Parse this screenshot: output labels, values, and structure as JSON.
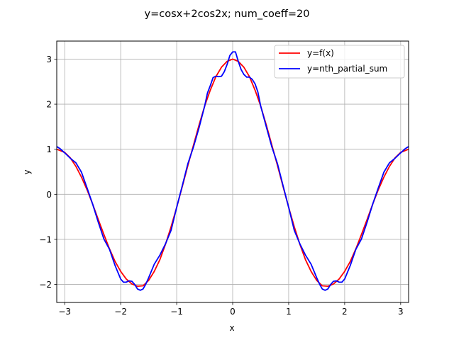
{
  "chart_data": {
    "type": "line",
    "title": "y=cosx+2cos2x; num_coeff=20",
    "xlabel": "x",
    "ylabel": "y",
    "xlim": [
      -3.1416,
      3.1416
    ],
    "ylim": [
      -2.4,
      3.4
    ],
    "xticks": [
      -3,
      -2,
      -1,
      0,
      1,
      2,
      3
    ],
    "xtick_labels": [
      "−3",
      "−2",
      "−1",
      "0",
      "1",
      "2",
      "3"
    ],
    "yticks": [
      -2,
      -1,
      0,
      1,
      2,
      3
    ],
    "ytick_labels": [
      "−2",
      "−1",
      "0",
      "1",
      "2",
      "3"
    ],
    "grid": true,
    "legend_position": "top-right",
    "series": [
      {
        "name": "y=f(x)",
        "color": "#ff0000",
        "x": [
          -3.1416,
          -3.0,
          -2.9,
          -2.8,
          -2.7,
          -2.6,
          -2.5,
          -2.4,
          -2.3,
          -2.2,
          -2.1,
          -2.0,
          -1.9,
          -1.8,
          -1.7,
          -1.6,
          -1.5,
          -1.4,
          -1.3,
          -1.2,
          -1.1,
          -1.0,
          -0.9,
          -0.8,
          -0.7,
          -0.6,
          -0.5,
          -0.4,
          -0.3,
          -0.2,
          -0.1,
          0.0,
          0.1,
          0.2,
          0.3,
          0.4,
          0.5,
          0.6,
          0.7,
          0.8,
          0.9,
          1.0,
          1.1,
          1.2,
          1.3,
          1.4,
          1.5,
          1.6,
          1.7,
          1.8,
          1.9,
          2.0,
          2.1,
          2.2,
          2.3,
          2.4,
          2.5,
          2.6,
          2.7,
          2.8,
          2.9,
          3.0,
          3.1416
        ],
        "y": [
          1.0,
          0.93,
          0.81,
          0.62,
          0.38,
          0.1,
          -0.22,
          -0.56,
          -0.89,
          -1.21,
          -1.49,
          -1.71,
          -1.88,
          -1.99,
          -2.04,
          -2.03,
          -1.91,
          -1.71,
          -1.45,
          -1.11,
          -0.72,
          -0.29,
          0.17,
          0.64,
          1.09,
          1.54,
          1.96,
          2.31,
          2.61,
          2.82,
          2.95,
          3.0,
          2.95,
          2.82,
          2.61,
          2.31,
          1.96,
          1.54,
          1.09,
          0.64,
          0.17,
          -0.29,
          -0.72,
          -1.11,
          -1.45,
          -1.71,
          -1.91,
          -2.03,
          -2.04,
          -1.99,
          -1.88,
          -1.71,
          -1.49,
          -1.21,
          -0.89,
          -0.56,
          -0.22,
          0.1,
          0.38,
          0.62,
          0.81,
          0.93,
          1.0
        ]
      },
      {
        "name": "y=nth_partial_sum",
        "color": "#0000ff",
        "x": [
          -3.1416,
          -3.08,
          -3.0,
          -2.9,
          -2.8,
          -2.7,
          -2.6,
          -2.5,
          -2.4,
          -2.3,
          -2.2,
          -2.1,
          -2.0,
          -1.95,
          -1.9,
          -1.85,
          -1.8,
          -1.75,
          -1.7,
          -1.65,
          -1.6,
          -1.55,
          -1.5,
          -1.4,
          -1.3,
          -1.2,
          -1.1,
          -1.0,
          -0.9,
          -0.8,
          -0.7,
          -0.6,
          -0.5,
          -0.45,
          -0.4,
          -0.35,
          -0.3,
          -0.25,
          -0.2,
          -0.15,
          -0.1,
          -0.05,
          0.0,
          0.05,
          0.1,
          0.15,
          0.2,
          0.25,
          0.3,
          0.35,
          0.4,
          0.45,
          0.5,
          0.6,
          0.7,
          0.8,
          0.9,
          1.0,
          1.1,
          1.2,
          1.3,
          1.4,
          1.5,
          1.55,
          1.6,
          1.65,
          1.7,
          1.75,
          1.8,
          1.85,
          1.9,
          1.95,
          2.0,
          2.1,
          2.2,
          2.3,
          2.4,
          2.5,
          2.6,
          2.7,
          2.8,
          2.9,
          3.0,
          3.08,
          3.1416
        ],
        "y": [
          1.06,
          1.01,
          0.92,
          0.8,
          0.7,
          0.49,
          0.14,
          -0.22,
          -0.62,
          -0.99,
          -1.22,
          -1.58,
          -1.88,
          -1.95,
          -1.95,
          -1.92,
          -1.93,
          -2.0,
          -2.1,
          -2.13,
          -2.1,
          -1.99,
          -1.85,
          -1.55,
          -1.35,
          -1.1,
          -0.8,
          -0.29,
          0.19,
          0.68,
          1.05,
          1.48,
          1.96,
          2.25,
          2.41,
          2.59,
          2.62,
          2.61,
          2.62,
          2.72,
          2.88,
          3.08,
          3.16,
          3.16,
          2.95,
          2.77,
          2.66,
          2.6,
          2.6,
          2.55,
          2.45,
          2.27,
          1.96,
          1.5,
          1.05,
          0.68,
          0.19,
          -0.29,
          -0.8,
          -1.1,
          -1.35,
          -1.55,
          -1.85,
          -1.99,
          -2.1,
          -2.13,
          -2.1,
          -2.0,
          -1.93,
          -1.92,
          -1.95,
          -1.95,
          -1.88,
          -1.58,
          -1.22,
          -0.99,
          -0.62,
          -0.22,
          0.14,
          0.49,
          0.7,
          0.8,
          0.92,
          1.01,
          1.06
        ]
      }
    ]
  }
}
